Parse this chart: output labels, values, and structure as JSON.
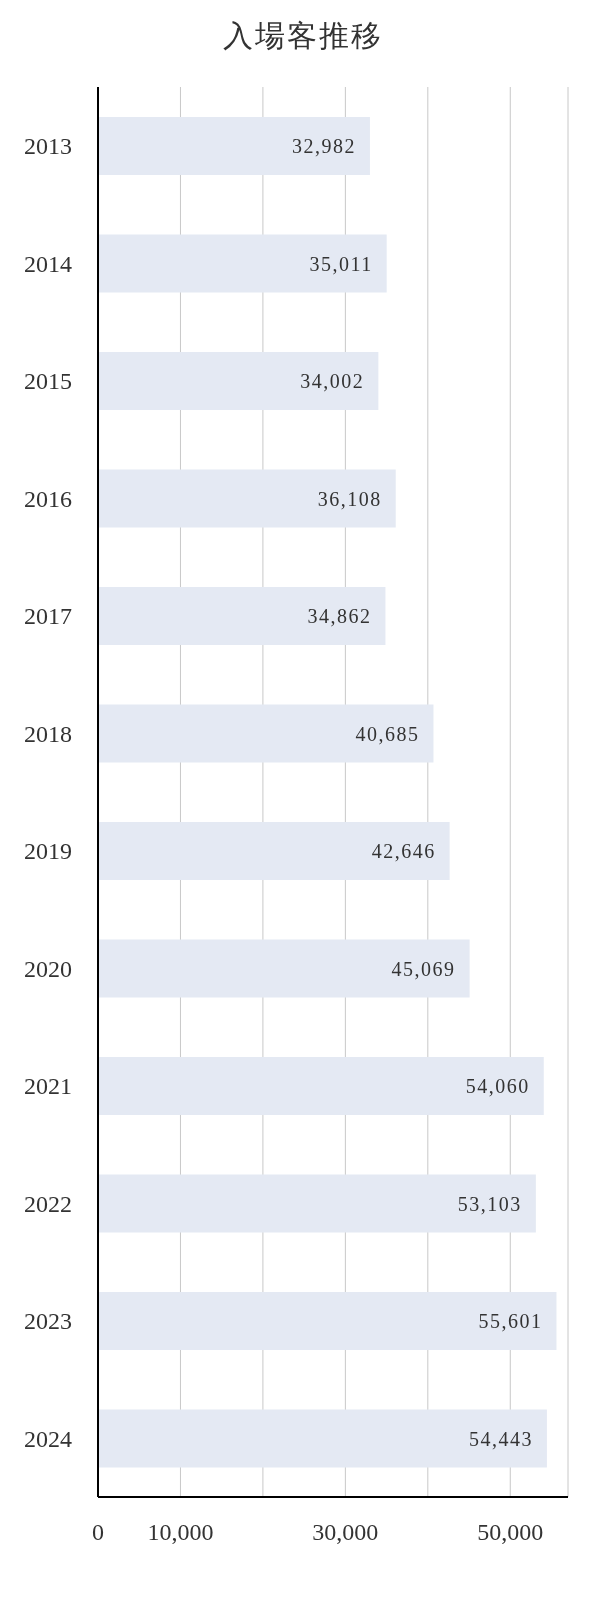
{
  "chart_data": {
    "type": "bar",
    "orientation": "horizontal",
    "title": "入場客推移",
    "categories": [
      "2013",
      "2014",
      "2015",
      "2016",
      "2017",
      "2018",
      "2019",
      "2020",
      "2021",
      "2022",
      "2023",
      "2024"
    ],
    "values": [
      32982,
      35011,
      34002,
      36108,
      34862,
      40685,
      42646,
      45069,
      54060,
      53103,
      55601,
      54443
    ],
    "value_labels": [
      "32,982",
      "35,011",
      "34,002",
      "36,108",
      "34,862",
      "40,685",
      "42,646",
      "45,069",
      "54,060",
      "53,103",
      "55,601",
      "54,443"
    ],
    "color": "#e4e9f3",
    "xlim": [
      0,
      57000
    ],
    "xticks": [
      0,
      {
        "value": 10000,
        "label": "10,000"
      },
      {
        "value": 20000,
        "label": null
      },
      {
        "value": 30000,
        "label": "30,000"
      },
      {
        "value": 40000,
        "label": null
      },
      {
        "value": 50000,
        "label": "50,000"
      }
    ],
    "grid": "x"
  }
}
